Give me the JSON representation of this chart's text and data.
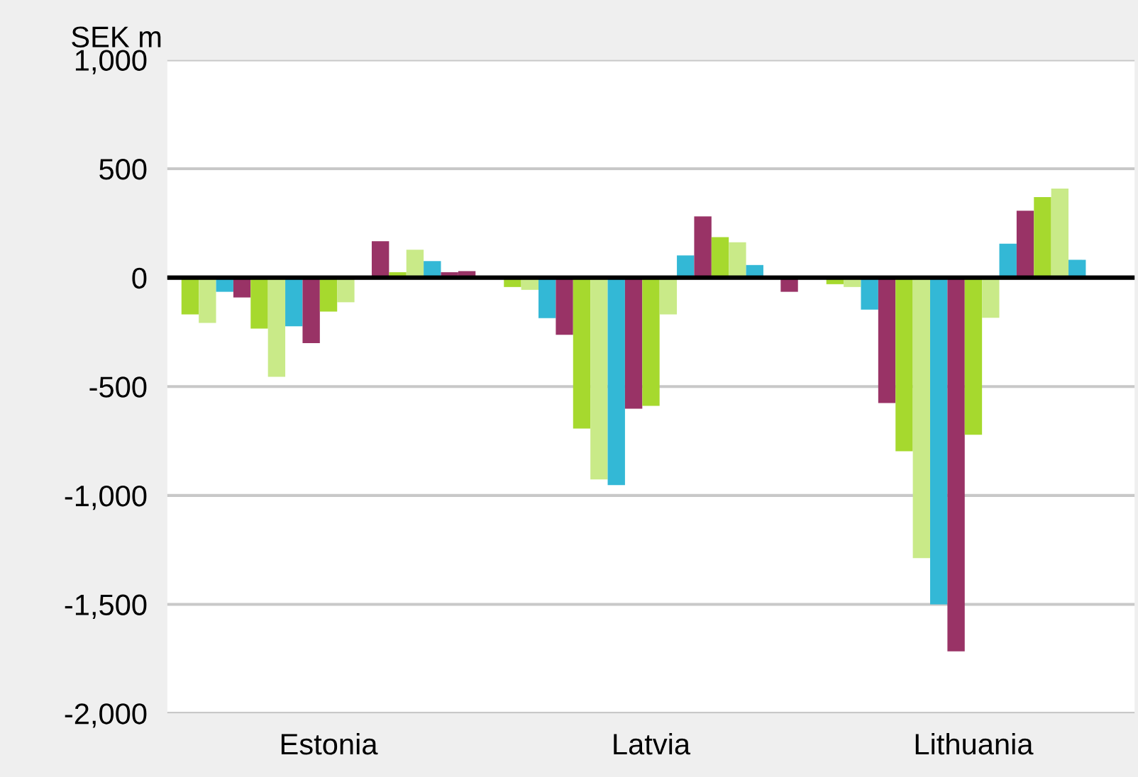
{
  "chart_data": {
    "type": "bar",
    "ylabel": "SEK m",
    "categories": [
      "Estonia",
      "Latvia",
      "Lithuania"
    ],
    "series": [
      {
        "color": "#a6d92e",
        "values": [
          -169,
          -43,
          -30
        ]
      },
      {
        "color": "#c9ea88",
        "values": [
          -208,
          -56,
          -43
        ]
      },
      {
        "color": "#33b8d6",
        "values": [
          -65,
          -186,
          -147
        ]
      },
      {
        "color": "#993366",
        "values": [
          -91,
          -262,
          -576
        ]
      },
      {
        "color": "#a6d92e",
        "values": [
          -234,
          -693,
          -797
        ]
      },
      {
        "color": "#c9ea88",
        "values": [
          -455,
          -926,
          -1288
        ]
      },
      {
        "color": "#33b8d6",
        "values": [
          -223,
          -952,
          -1500
        ]
      },
      {
        "color": "#993366",
        "values": [
          -301,
          -602,
          -1716
        ]
      },
      {
        "color": "#a6d92e",
        "values": [
          -156,
          -589,
          -721
        ]
      },
      {
        "color": "#c9ea88",
        "values": [
          -113,
          -169,
          -184
        ]
      },
      {
        "color": "#33b8d6",
        "values": [
          0,
          102,
          156
        ]
      },
      {
        "color": "#993366",
        "values": [
          167,
          281,
          307
        ]
      },
      {
        "color": "#a6d92e",
        "values": [
          25,
          186,
          370
        ]
      },
      {
        "color": "#c9ea88",
        "values": [
          128,
          162,
          409
        ]
      },
      {
        "color": "#33b8d6",
        "values": [
          76,
          58,
          82
        ]
      },
      {
        "color": "#993366",
        "values": [
          25,
          0,
          0
        ]
      },
      {
        "color": "#993366",
        "values": [
          30,
          -65,
          0
        ]
      }
    ],
    "ylim": [
      -2000,
      1000
    ],
    "yticks": [
      {
        "value": -2000,
        "label": "-2,000"
      },
      {
        "value": -1500,
        "label": "-1,500"
      },
      {
        "value": -1000,
        "label": "-1,000"
      },
      {
        "value": -500,
        "label": "-500"
      },
      0,
      500,
      {
        "value": 1000,
        "label": "1,000"
      }
    ],
    "grid": "y",
    "ref_lines": [
      {
        "axis": "y",
        "value": 0,
        "color": "#000000"
      }
    ]
  }
}
